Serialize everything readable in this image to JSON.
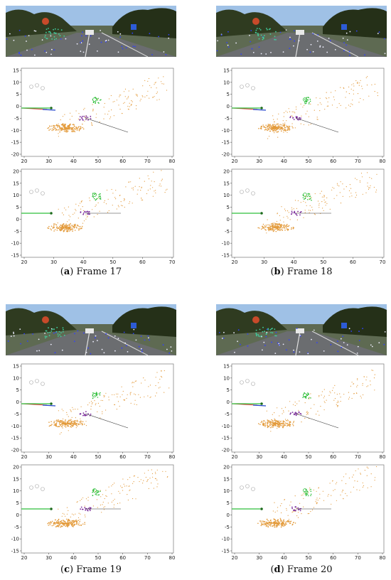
{
  "figures": [
    {
      "id": "a",
      "frame_label": "Frame 17",
      "top": {
        "xticks": [
          "20",
          "30",
          "40",
          "50",
          "60",
          "70",
          "80"
        ],
        "yticks": [
          "15",
          "10",
          "5",
          "0",
          "-5",
          "-10",
          "-15",
          "-20"
        ]
      },
      "bottom": {
        "xticks": [
          "20",
          "30",
          "40",
          "50",
          "60",
          "70"
        ],
        "yticks": [
          "20",
          "15",
          "10",
          "5",
          "0",
          "-5",
          "-10",
          "-15"
        ]
      }
    },
    {
      "id": "b",
      "frame_label": "Frame 18",
      "top": {
        "xticks": [
          "20",
          "30",
          "40",
          "50",
          "60",
          "70",
          "80"
        ],
        "yticks": [
          "15",
          "10",
          "5",
          "0",
          "-5",
          "-10",
          "-15",
          "-20"
        ]
      },
      "bottom": {
        "xticks": [
          "20",
          "30",
          "40",
          "50",
          "60",
          "70"
        ],
        "yticks": [
          "20",
          "15",
          "10",
          "5",
          "0",
          "-5",
          "-10",
          "-15"
        ]
      }
    },
    {
      "id": "c",
      "frame_label": "Frame 19",
      "top": {
        "xticks": [
          "20",
          "30",
          "40",
          "50",
          "60",
          "70",
          "80"
        ],
        "yticks": [
          "15",
          "10",
          "5",
          "0",
          "-5",
          "-10",
          "-15",
          "-20"
        ]
      },
      "bottom": {
        "xticks": [
          "20",
          "30",
          "40",
          "50",
          "60",
          "70",
          "80"
        ],
        "yticks": [
          "20",
          "15",
          "10",
          "5",
          "0",
          "-5",
          "-10",
          "-15"
        ]
      }
    },
    {
      "id": "d",
      "frame_label": "Frame 20",
      "top": {
        "xticks": [
          "20",
          "30",
          "40",
          "50",
          "60",
          "70",
          "80"
        ],
        "yticks": [
          "15",
          "10",
          "5",
          "0",
          "-5",
          "-10",
          "-15",
          "-20"
        ]
      },
      "bottom": {
        "xticks": [
          "20",
          "30",
          "40",
          "50",
          "60",
          "70",
          "80"
        ],
        "yticks": [
          "20",
          "15",
          "10",
          "5",
          "0",
          "-5",
          "-10",
          "-15"
        ]
      }
    }
  ],
  "colors": {
    "points": "#e39a3a",
    "green_object": "#2fbf3a",
    "purple_object": "#7a2a9a",
    "red_arrow": "#d22b2b",
    "blue_arrow": "#2244cc",
    "frame": "#777777"
  }
}
